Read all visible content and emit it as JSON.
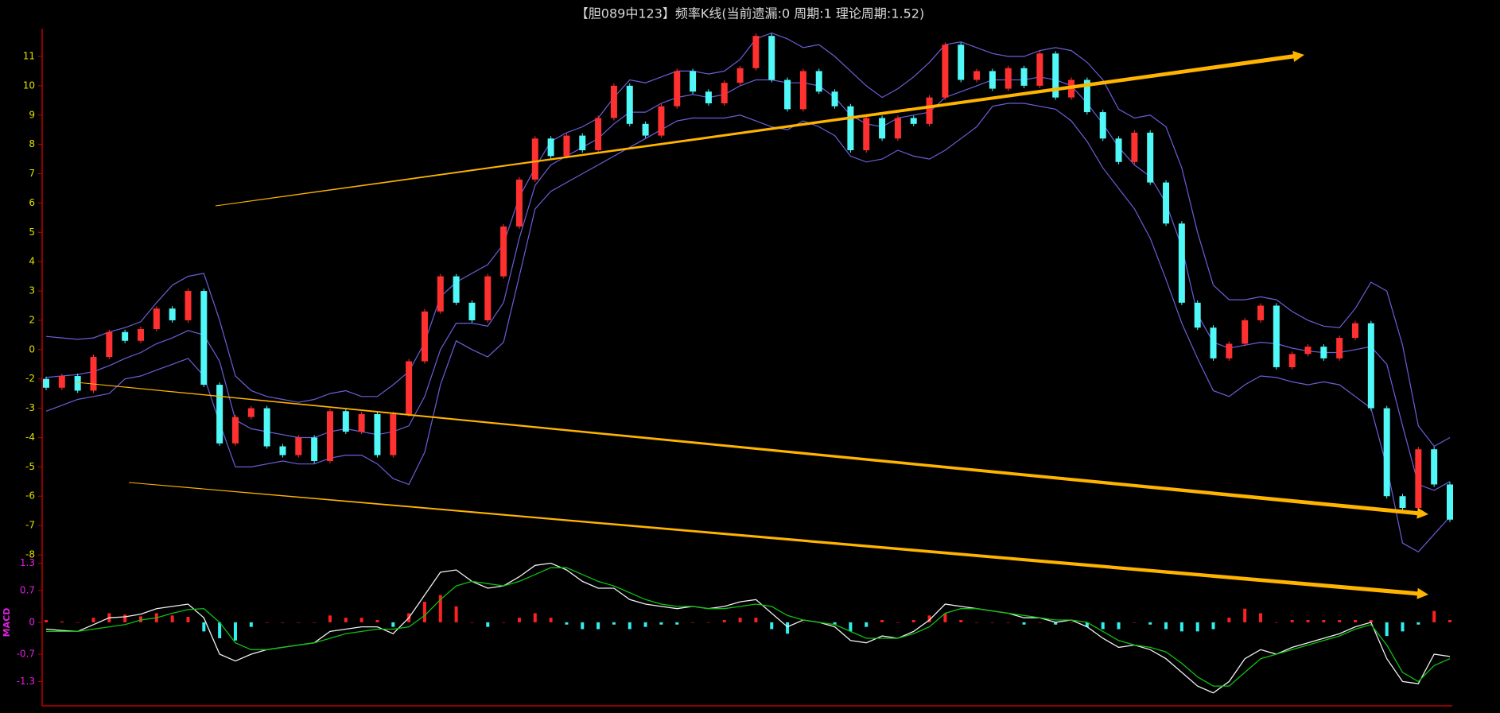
{
  "chart_data": [
    {
      "type": "candlestick",
      "title": "【胆089中123】频率K线(当前遗漏:0 周期:1 理论周期:1.52)",
      "open": [
        -2.0,
        -2.3,
        -1.8,
        -2.4,
        -0.5,
        1.2,
        0.6,
        1.4,
        2.4,
        2.0,
        3.0,
        -2.2,
        -4.2,
        -3.3,
        -3.0,
        -4.3,
        -4.6,
        -4.0,
        -4.8,
        -3.1,
        -3.8,
        -3.2,
        -4.6,
        -3.2,
        -0.8,
        2.3,
        3.5,
        2.6,
        2.0,
        3.5,
        5.2,
        6.8,
        8.2,
        7.6,
        8.3,
        7.8,
        8.9,
        10.0,
        8.7,
        8.3,
        9.3,
        10.5,
        9.8,
        9.4,
        10.1,
        10.6,
        11.7,
        10.2,
        9.2,
        10.5,
        9.8,
        9.3,
        7.8,
        8.9,
        8.2,
        8.9,
        8.7,
        9.6,
        11.4,
        10.2,
        10.5,
        9.9,
        10.6,
        10.0,
        11.1,
        9.6,
        10.2,
        9.1,
        8.2,
        7.4,
        8.4,
        6.7,
        5.3,
        2.6,
        1.5,
        -0.6,
        0.4,
        2.0,
        2.5,
        -1.2,
        -0.3,
        0.2,
        -0.6,
        0.8,
        1.8,
        -3.0,
        -6.0,
        -6.4,
        -4.4,
        -5.6
      ],
      "close": [
        -2.3,
        -1.8,
        -2.4,
        -0.5,
        1.2,
        0.6,
        1.4,
        2.4,
        2.0,
        3.0,
        -2.2,
        -4.2,
        -3.3,
        -3.0,
        -4.3,
        -4.6,
        -4.0,
        -4.8,
        -3.1,
        -3.8,
        -3.2,
        -4.6,
        -3.2,
        -0.8,
        2.3,
        3.5,
        2.6,
        2.0,
        3.5,
        5.2,
        6.8,
        8.2,
        7.6,
        8.3,
        7.8,
        8.9,
        10.0,
        8.7,
        8.3,
        9.3,
        10.5,
        9.8,
        9.4,
        10.1,
        10.6,
        11.7,
        10.2,
        9.2,
        10.5,
        9.8,
        9.3,
        7.8,
        8.9,
        8.2,
        8.9,
        8.7,
        9.6,
        11.4,
        10.2,
        10.5,
        9.9,
        10.6,
        10.0,
        11.1,
        9.6,
        10.2,
        9.1,
        8.2,
        7.4,
        8.4,
        6.7,
        5.3,
        2.6,
        1.5,
        -0.6,
        0.4,
        2.0,
        2.5,
        -1.2,
        -0.3,
        0.2,
        -0.6,
        0.8,
        1.8,
        -3.0,
        -6.0,
        -6.4,
        -4.4,
        -5.6,
        -6.8
      ],
      "up_color": "#ff3030",
      "down_color": "#50f8f8",
      "lines": [
        {
          "color": "#6a5fd8",
          "values": [
            0.9,
            0.8,
            0.7,
            0.8,
            1.2,
            1.5,
            1.9,
            2.6,
            3.2,
            3.5,
            3.6,
            2.0,
            -1.8,
            -2.4,
            -2.6,
            -2.7,
            -2.8,
            -2.7,
            -2.5,
            -2.4,
            -2.6,
            -2.6,
            -2.2,
            -1.5,
            0.5,
            2.8,
            3.3,
            3.6,
            3.9,
            4.6,
            6.2,
            7.2,
            8.1,
            8.4,
            8.6,
            8.9,
            9.6,
            10.2,
            10.1,
            10.3,
            10.5,
            10.5,
            10.4,
            10.5,
            10.9,
            11.6,
            11.8,
            11.6,
            11.3,
            11.4,
            11.0,
            10.5,
            10.0,
            9.6,
            9.9,
            10.3,
            10.8,
            11.4,
            11.5,
            11.3,
            11.1,
            11.0,
            11.0,
            11.2,
            11.3,
            11.2,
            10.8,
            10.2,
            9.2,
            8.9,
            9.0,
            8.6,
            7.2,
            5.0,
            3.2,
            2.7,
            2.7,
            2.8,
            2.7,
            2.3,
            2.0,
            1.6,
            1.5,
            2.4,
            3.3,
            3.0,
            0.3,
            -3.6,
            -4.3,
            -4.0
          ]
        },
        {
          "color": "#6a5fd8",
          "values": [
            -1.9,
            -1.8,
            -1.7,
            -1.5,
            -1.1,
            -0.6,
            -0.2,
            0.4,
            0.8,
            1.3,
            1.0,
            -0.8,
            -3.4,
            -3.7,
            -3.8,
            -3.9,
            -4.0,
            -4.0,
            -3.8,
            -3.7,
            -3.8,
            -3.9,
            -3.8,
            -3.6,
            -2.6,
            0.0,
            1.8,
            1.8,
            1.6,
            2.6,
            4.8,
            6.6,
            7.3,
            7.6,
            7.9,
            8.2,
            8.7,
            9.1,
            9.1,
            9.4,
            9.6,
            9.7,
            9.6,
            9.7,
            10.0,
            10.2,
            10.2,
            10.1,
            10.1,
            10.0,
            9.6,
            9.0,
            8.7,
            8.6,
            8.9,
            9.0,
            9.1,
            9.6,
            9.8,
            10.0,
            10.2,
            10.2,
            10.2,
            10.3,
            10.2,
            10.0,
            9.4,
            8.7,
            7.9,
            7.3,
            6.9,
            6.0,
            4.5,
            2.2,
            0.5,
            0.1,
            0.3,
            0.5,
            0.4,
            0.1,
            -0.1,
            -0.2,
            -0.2,
            0.0,
            0.2,
            -1.0,
            -3.6,
            -5.6,
            -5.8,
            -5.5
          ]
        },
        {
          "color": "#6a5fd8",
          "values": [
            -3.1,
            -2.9,
            -2.7,
            -2.6,
            -2.5,
            -2.0,
            -1.8,
            -1.4,
            -1.0,
            -0.6,
            -1.8,
            -3.5,
            -5.0,
            -5.0,
            -4.9,
            -4.8,
            -4.9,
            -4.9,
            -4.7,
            -4.6,
            -4.6,
            -4.9,
            -5.4,
            -5.6,
            -4.5,
            -2.2,
            0.6,
            0.0,
            -0.5,
            0.5,
            3.5,
            5.8,
            6.4,
            6.7,
            7.0,
            7.3,
            7.6,
            7.9,
            8.2,
            8.5,
            8.8,
            8.9,
            8.9,
            8.9,
            9.0,
            8.8,
            8.6,
            8.5,
            8.8,
            8.6,
            8.3,
            7.6,
            7.4,
            7.5,
            7.8,
            7.6,
            7.5,
            7.8,
            8.2,
            8.6,
            9.3,
            9.4,
            9.4,
            9.3,
            9.2,
            8.8,
            8.1,
            7.2,
            6.5,
            5.8,
            4.8,
            3.4,
            1.8,
            -0.6,
            -2.4,
            -2.6,
            -2.2,
            -1.8,
            -1.9,
            -2.1,
            -2.2,
            -2.1,
            -2.2,
            -2.6,
            -3.0,
            -5.0,
            -7.6,
            -7.9,
            -7.3,
            -6.7
          ]
        }
      ],
      "ylim": [
        -8,
        11
      ],
      "yticks": [
        -8,
        -7,
        -6,
        -5,
        -4,
        -3,
        -2,
        0,
        2,
        3,
        4,
        5,
        6,
        7,
        8,
        9,
        10,
        11
      ],
      "tick_color": "#e0e000"
    },
    {
      "type": "macd",
      "label": "MACD",
      "series": [
        {
          "color": "#f0f0f0",
          "values": [
            -0.15,
            -0.18,
            -0.2,
            -0.05,
            0.1,
            0.12,
            0.18,
            0.3,
            0.35,
            0.4,
            0.1,
            -0.7,
            -0.85,
            -0.7,
            -0.6,
            -0.55,
            -0.5,
            -0.45,
            -0.2,
            -0.15,
            -0.1,
            -0.1,
            -0.25,
            0.1,
            0.6,
            1.1,
            1.15,
            0.9,
            0.75,
            0.8,
            1.0,
            1.25,
            1.3,
            1.15,
            0.9,
            0.75,
            0.75,
            0.5,
            0.4,
            0.35,
            0.3,
            0.35,
            0.3,
            0.35,
            0.45,
            0.5,
            0.2,
            -0.1,
            0.05,
            0.0,
            -0.1,
            -0.4,
            -0.45,
            -0.3,
            -0.35,
            -0.2,
            0.05,
            0.4,
            0.35,
            0.3,
            0.25,
            0.2,
            0.1,
            0.1,
            0.0,
            0.05,
            -0.1,
            -0.35,
            -0.55,
            -0.5,
            -0.6,
            -0.8,
            -1.1,
            -1.4,
            -1.55,
            -1.3,
            -0.8,
            -0.6,
            -0.7,
            -0.55,
            -0.45,
            -0.35,
            -0.25,
            -0.1,
            0.0,
            -0.8,
            -1.3,
            -1.35,
            -0.7,
            -0.75
          ]
        },
        {
          "color": "#10c010",
          "values": [
            -0.2,
            -0.2,
            -0.2,
            -0.15,
            -0.1,
            -0.05,
            0.05,
            0.1,
            0.2,
            0.28,
            0.3,
            0.0,
            -0.45,
            -0.6,
            -0.6,
            -0.55,
            -0.5,
            -0.45,
            -0.35,
            -0.25,
            -0.2,
            -0.15,
            -0.15,
            -0.1,
            0.15,
            0.5,
            0.8,
            0.9,
            0.85,
            0.8,
            0.9,
            1.05,
            1.2,
            1.2,
            1.05,
            0.9,
            0.8,
            0.65,
            0.5,
            0.4,
            0.35,
            0.35,
            0.3,
            0.3,
            0.35,
            0.4,
            0.35,
            0.15,
            0.05,
            0.0,
            -0.05,
            -0.2,
            -0.35,
            -0.35,
            -0.35,
            -0.25,
            -0.1,
            0.2,
            0.3,
            0.3,
            0.25,
            0.2,
            0.15,
            0.1,
            0.05,
            0.05,
            0.0,
            -0.2,
            -0.4,
            -0.5,
            -0.55,
            -0.65,
            -0.9,
            -1.2,
            -1.4,
            -1.4,
            -1.1,
            -0.8,
            -0.7,
            -0.6,
            -0.5,
            -0.4,
            -0.3,
            -0.15,
            -0.05,
            -0.5,
            -1.1,
            -1.3,
            -0.95,
            -0.8
          ]
        }
      ],
      "histogram": {
        "up_color": "#ff2020",
        "down_color": "#30f0f0",
        "values": [
          0.05,
          0.02,
          0,
          0.1,
          0.2,
          0.17,
          0.13,
          0.2,
          0.15,
          0.12,
          -0.2,
          -0.35,
          -0.4,
          -0.1,
          0,
          0,
          0,
          0,
          0.15,
          0.1,
          0.1,
          0.05,
          -0.1,
          0.2,
          0.45,
          0.6,
          0.35,
          0,
          -0.1,
          0,
          0.1,
          0.2,
          0.1,
          -0.05,
          -0.15,
          -0.15,
          -0.05,
          -0.15,
          -0.1,
          -0.05,
          -0.05,
          0,
          0,
          0.05,
          0.1,
          0.1,
          -0.15,
          -0.25,
          0,
          0,
          -0.05,
          -0.2,
          -0.1,
          0.05,
          0,
          0.05,
          0.15,
          0.2,
          0.05,
          0,
          0,
          0,
          -0.05,
          0,
          -0.05,
          0,
          -0.1,
          -0.15,
          -0.15,
          0,
          -0.05,
          -0.15,
          -0.2,
          -0.2,
          -0.15,
          0.1,
          0.3,
          0.2,
          0,
          0.05,
          0.05,
          0.05,
          0.05,
          0.05,
          0.05,
          -0.3,
          -0.2,
          -0.05,
          0.25,
          0.05
        ]
      },
      "ylim": [
        -1.8,
        1.5
      ],
      "yticks": [
        1.3,
        0.7,
        0,
        -0.7,
        -1.3
      ],
      "tick_color": "#e020e0"
    }
  ]
}
